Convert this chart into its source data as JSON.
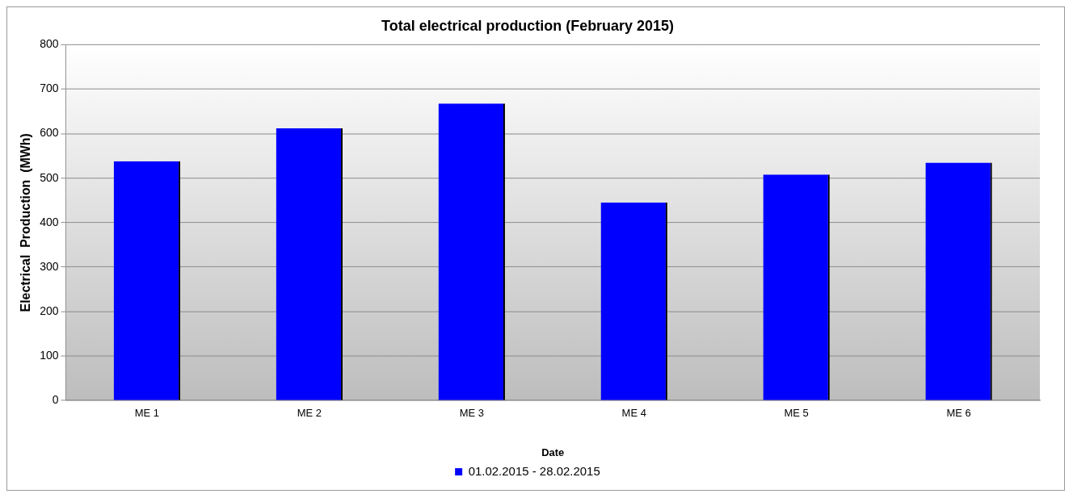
{
  "chart_data": {
    "type": "bar",
    "title": "Total electrical production (February 2015)",
    "xlabel": "Date",
    "ylabel": "Electrical  Production  (MWh)",
    "categories": [
      "ME 1",
      "ME 2",
      "ME 3",
      "ME 4",
      "ME 5",
      "ME 6"
    ],
    "series": [
      {
        "name": "01.02.2015 - 28.02.2015",
        "color": "#0000ff",
        "values": [
          538,
          612,
          668,
          445,
          508,
          535
        ]
      }
    ],
    "ylim": [
      0,
      800
    ],
    "yticks": [
      0,
      100,
      200,
      300,
      400,
      500,
      600,
      700,
      800
    ],
    "grid": "y",
    "legend": "bottom"
  }
}
